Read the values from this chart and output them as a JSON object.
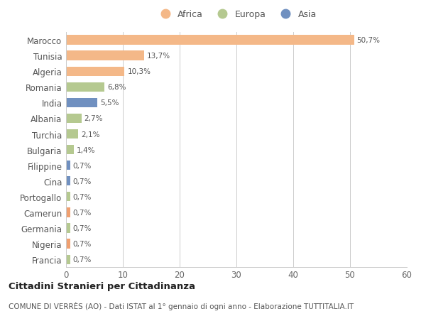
{
  "countries": [
    "Francia",
    "Nigeria",
    "Germania",
    "Camerun",
    "Portogallo",
    "Cina",
    "Filippine",
    "Bulgaria",
    "Turchia",
    "Albania",
    "India",
    "Romania",
    "Algeria",
    "Tunisia",
    "Marocco"
  ],
  "values": [
    0.7,
    0.7,
    0.7,
    0.7,
    0.7,
    0.7,
    0.7,
    1.4,
    2.1,
    2.7,
    5.5,
    6.8,
    10.3,
    13.7,
    50.7
  ],
  "labels": [
    "0,7%",
    "0,7%",
    "0,7%",
    "0,7%",
    "0,7%",
    "0,7%",
    "0,7%",
    "1,4%",
    "2,1%",
    "2,7%",
    "5,5%",
    "6,8%",
    "10,3%",
    "13,7%",
    "50,7%"
  ],
  "colors": [
    "#b5c990",
    "#f0a070",
    "#b5c990",
    "#f0a070",
    "#b5c990",
    "#7090c0",
    "#7090c0",
    "#b5c990",
    "#b5c990",
    "#b5c990",
    "#7090c0",
    "#b5c990",
    "#f4b888",
    "#f4b888",
    "#f4b888"
  ],
  "africa_color": "#f4b888",
  "europa_color": "#b5c990",
  "asia_color": "#7090c0",
  "bg_color": "#ffffff",
  "plot_bg": "#ffffff",
  "grid_color": "#cccccc",
  "title": "Cittadini Stranieri per Cittadinanza",
  "subtitle": "COMUNE DI VERRÈS (AO) - Dati ISTAT al 1° gennaio di ogni anno - Elaborazione TUTTITALIA.IT",
  "xlim": [
    0,
    60
  ],
  "xticks": [
    0,
    10,
    20,
    30,
    40,
    50,
    60
  ]
}
